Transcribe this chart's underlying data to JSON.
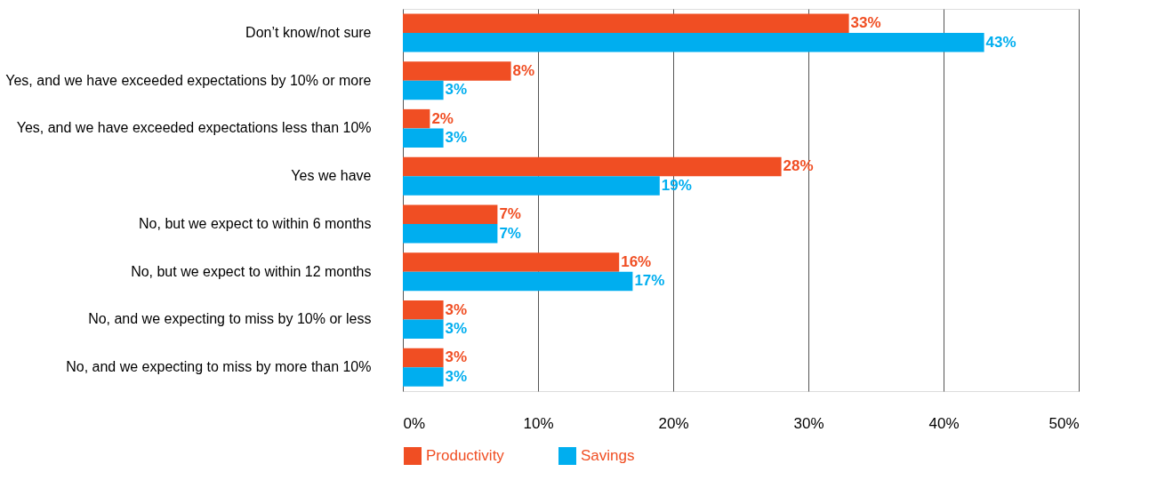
{
  "chart_data": {
    "type": "bar",
    "orientation": "horizontal",
    "categories": [
      "Don’t know/not sure",
      "Yes, and we have exceeded expectations by 10% or more",
      "Yes, and we have exceeded expectations less than 10%",
      "Yes we have",
      "No, but we expect to within 6 months",
      "No, but we expect to within 12 months",
      "No, and we expecting to miss by 10% or less",
      "No, and we expecting to miss by more than 10%"
    ],
    "series": [
      {
        "name": "Productivity",
        "color": "#f04e23",
        "values": [
          33,
          8,
          2,
          28,
          7,
          16,
          3,
          3
        ],
        "value_labels": [
          "33%",
          "8%",
          "2%",
          "28%",
          "7%",
          "16%",
          "3%",
          "3%"
        ]
      },
      {
        "name": "Savings",
        "color": "#00aeef",
        "values": [
          43,
          3,
          3,
          19,
          7,
          17,
          3,
          3
        ],
        "value_labels": [
          "43%",
          "3%",
          "3%",
          "19%",
          "7%",
          "17%",
          "3%",
          "3%"
        ]
      }
    ],
    "xlim": [
      0,
      50
    ],
    "xticks": [
      {
        "value": 0,
        "label": "0%"
      },
      {
        "value": 10,
        "label": "10%"
      },
      {
        "value": 20,
        "label": "20%"
      },
      {
        "value": 30,
        "label": "30%"
      },
      {
        "value": 40,
        "label": "40%"
      },
      {
        "value": 50,
        "label": "50%"
      }
    ],
    "grid": "x",
    "legend": "bottom"
  }
}
